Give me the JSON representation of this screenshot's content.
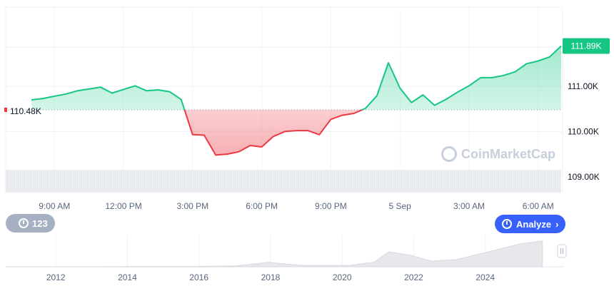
{
  "chart_data": {
    "type": "area",
    "series": [
      {
        "x": [
          "08:00",
          "08:30",
          "09:00",
          "09:30",
          "10:00",
          "10:30",
          "11:00",
          "11:30",
          "12:00",
          "12:30",
          "13:00",
          "13:30",
          "14:00",
          "14:30",
          "15:00",
          "15:30",
          "16:00",
          "16:30",
          "17:00",
          "17:30",
          "18:00",
          "18:30",
          "19:00",
          "19:30",
          "20:00",
          "20:30",
          "21:00",
          "21:30",
          "22:00",
          "22:30",
          "23:00",
          "23:30",
          "00:00",
          "00:30",
          "01:00",
          "01:30",
          "02:00",
          "02:30",
          "03:00",
          "03:30",
          "04:00",
          "04:30",
          "05:00",
          "05:30",
          "06:00",
          "06:30",
          "07:00"
        ],
        "values": [
          110700,
          110730,
          110780,
          110830,
          110900,
          110940,
          110980,
          110850,
          110930,
          111010,
          110900,
          110920,
          110880,
          110710,
          109930,
          109920,
          109480,
          109500,
          109550,
          109690,
          109660,
          109890,
          110000,
          110020,
          110020,
          109930,
          110270,
          110360,
          110400,
          110510,
          110790,
          111520,
          110960,
          110640,
          110810,
          110580,
          110710,
          110870,
          111010,
          111190,
          111190,
          111240,
          111320,
          111500,
          111560,
          111650,
          111890
        ]
      }
    ],
    "baseline_value": 110480,
    "baseline_label": "110.48K",
    "current_value": 111890,
    "current_label": "111.89K",
    "y_ticks": [
      "111.00K",
      "110.00K",
      "109.00K"
    ],
    "y_tick_values": [
      111000,
      110000,
      109000
    ],
    "ylim": [
      108650,
      112750
    ],
    "x_ticks": [
      "9:00 AM",
      "12:00 PM",
      "3:00 PM",
      "6:00 PM",
      "9:00 PM",
      "5 Sep",
      "3:00 AM",
      "6:00 AM"
    ],
    "x_tick_times": [
      "09:00",
      "12:00",
      "15:00",
      "18:00",
      "21:00",
      "00:00",
      "03:00",
      "06:00"
    ],
    "colors": {
      "up": "#16c784",
      "down": "#ea3943",
      "baseline": "#999999"
    },
    "navigator": {
      "years": [
        "2012",
        "2014",
        "2016",
        "2018",
        "2020",
        "2022",
        "2024"
      ],
      "year_values": [
        2012,
        2014,
        2016,
        2018,
        2020,
        2022,
        2024
      ],
      "range": [
        2010.6,
        2026.2
      ],
      "history_x": [
        2010.6,
        2013.0,
        2013.9,
        2016.0,
        2017.0,
        2017.95,
        2018.9,
        2020.2,
        2020.9,
        2021.3,
        2021.9,
        2022.5,
        2023.2,
        2024.2,
        2025.0,
        2025.6
      ],
      "history_y": [
        0,
        0,
        0.01,
        0.01,
        0.03,
        0.17,
        0.05,
        0.05,
        0.18,
        0.58,
        0.45,
        0.22,
        0.28,
        0.62,
        0.9,
        1.0
      ]
    }
  },
  "ui": {
    "history_button_label": "123",
    "analyze_button_label": "Analyze",
    "watermark": "CoinMarketCap"
  }
}
